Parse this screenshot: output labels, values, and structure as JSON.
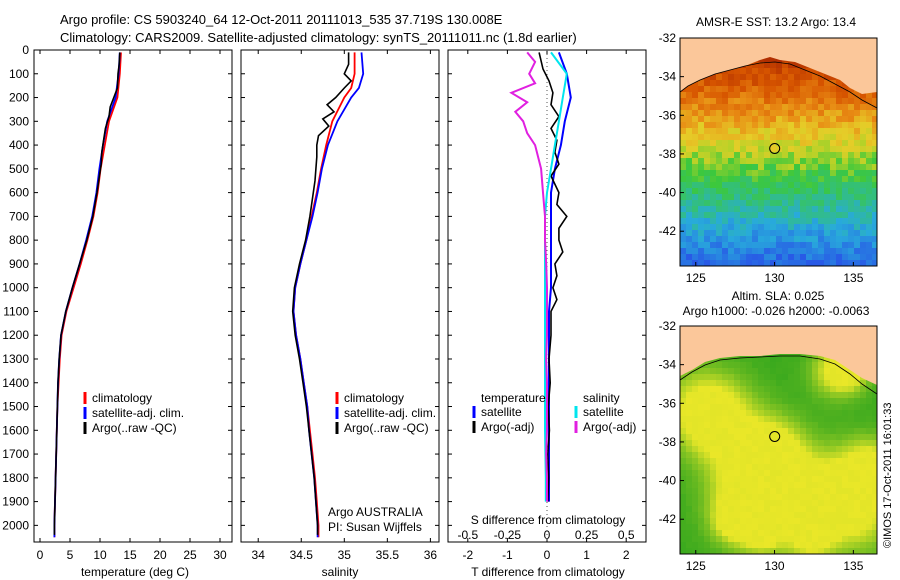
{
  "header": {
    "title_line1": "Argo profile: CS 5903240_64 12-Oct-2011 20111013_535 37.719S 130.008E",
    "title_line2": "Climatology: CARS2009. Satellite-adjusted climatology: synTS_20111011.nc (1.8d earlier)"
  },
  "colors": {
    "climatology": "#ff0000",
    "satellite": "#0000ff",
    "argo": "#000000",
    "salinity_satellite": "#00e5ee",
    "salinity_argo": "#e020e0",
    "land": "#fbc79a"
  },
  "depth_ticks": [
    "0",
    "100",
    "200",
    "300",
    "400",
    "500",
    "600",
    "700",
    "800",
    "900",
    "1000",
    "1100",
    "1200",
    "1300",
    "1400",
    "1500",
    "1600",
    "1700",
    "1800",
    "1900",
    "2000"
  ],
  "legend": {
    "climatology": "climatology",
    "satellite_adj": "satellite-adj. clim.",
    "argo_raw": "Argo(..raw -QC)",
    "temperature_head": "temperature",
    "salinity_head": "salinity",
    "satellite": "satellite",
    "argo_adj": "Argo(-adj)"
  },
  "credits": {
    "argo": "Argo AUSTRALIA",
    "pi": "PI: Susan Wijffels",
    "imos": "©IMOS 17-Oct-2011 16:01:33"
  },
  "chart_data": [
    {
      "type": "line",
      "title": "temperature profile",
      "xlabel": "temperature (deg C)",
      "ylabel": "depth",
      "xlim": [
        -1,
        32
      ],
      "ylim": [
        2070,
        0
      ],
      "xticks": [
        "0",
        "5",
        "10",
        "15",
        "20",
        "25",
        "30"
      ],
      "series": [
        {
          "name": "climatology",
          "depth": [
            10,
            100,
            200,
            300,
            400,
            500,
            600,
            700,
            800,
            900,
            1000,
            1100,
            1200,
            1300,
            1400,
            1500,
            1600,
            1700,
            1800,
            1900,
            2000,
            2050
          ],
          "values": [
            13.5,
            13.3,
            12.9,
            11.5,
            10.8,
            10.1,
            9.6,
            8.9,
            7.9,
            6.8,
            5.6,
            4.4,
            3.6,
            3.3,
            3.1,
            2.9,
            2.8,
            2.7,
            2.6,
            2.5,
            2.4,
            2.4
          ]
        },
        {
          "name": "satellite-adj. clim.",
          "depth": [
            10,
            100,
            200,
            300,
            400,
            500,
            600,
            700,
            800,
            900,
            1000,
            1100,
            1200,
            1300,
            1400,
            1500,
            1600,
            1700,
            1800,
            1900,
            2000,
            2050
          ],
          "values": [
            13.3,
            13.1,
            12.6,
            11.2,
            10.5,
            9.9,
            9.4,
            8.7,
            7.7,
            6.6,
            5.4,
            4.3,
            3.5,
            3.2,
            3.0,
            2.9,
            2.8,
            2.7,
            2.6,
            2.5,
            2.4,
            2.4
          ]
        },
        {
          "name": "Argo(..raw -QC)",
          "depth": [
            10,
            60,
            100,
            160,
            200,
            240,
            280,
            330,
            380,
            430,
            480,
            530,
            600,
            700,
            800,
            900,
            1000,
            1100,
            1200,
            1300,
            1400,
            1500,
            1600,
            1700,
            1800,
            1900,
            2000,
            2040
          ],
          "values": [
            13.3,
            13.2,
            13.0,
            12.9,
            12.3,
            11.7,
            11.5,
            10.9,
            10.6,
            10.3,
            10.2,
            9.9,
            9.5,
            8.8,
            7.8,
            6.6,
            5.4,
            4.3,
            3.5,
            3.2,
            3.0,
            2.9,
            2.8,
            2.7,
            2.6,
            2.5,
            2.4,
            2.4
          ]
        }
      ]
    },
    {
      "type": "line",
      "title": "salinity profile",
      "xlabel": "salinity",
      "ylabel": "depth",
      "xlim": [
        33.8,
        36.1
      ],
      "ylim": [
        2070,
        0
      ],
      "xticks": [
        "34",
        "34.5",
        "35",
        "35.5",
        "36"
      ],
      "series": [
        {
          "name": "climatology",
          "depth": [
            10,
            100,
            160,
            200,
            250,
            300,
            400,
            500,
            600,
            700,
            800,
            900,
            1000,
            1100,
            1200,
            1300,
            1400,
            1500,
            1600,
            1700,
            1800,
            1900,
            2000,
            2050
          ],
          "values": [
            35.12,
            35.12,
            35.08,
            35.0,
            34.93,
            34.86,
            34.79,
            34.73,
            34.68,
            34.62,
            34.56,
            34.49,
            34.43,
            34.41,
            34.44,
            34.49,
            34.53,
            34.57,
            34.6,
            34.63,
            34.66,
            34.68,
            34.7,
            34.7
          ]
        },
        {
          "name": "satellite-adj. clim.",
          "depth": [
            10,
            100,
            160,
            200,
            250,
            300,
            400,
            500,
            600,
            700,
            800,
            900,
            1000,
            1100,
            1200,
            1300,
            1400,
            1500,
            1600,
            1700,
            1800,
            1900,
            2000,
            2050
          ],
          "values": [
            35.2,
            35.22,
            35.17,
            35.08,
            35.0,
            34.92,
            34.81,
            34.74,
            34.69,
            34.63,
            34.56,
            34.49,
            34.43,
            34.41,
            34.44,
            34.49,
            34.53,
            34.57,
            34.59,
            34.62,
            34.65,
            34.67,
            34.69,
            34.69
          ]
        },
        {
          "name": "Argo(..raw -QC)",
          "depth": [
            10,
            60,
            100,
            130,
            160,
            200,
            230,
            260,
            290,
            320,
            360,
            400,
            450,
            500,
            550,
            600,
            700,
            800,
            900,
            1000,
            1100,
            1200,
            1300,
            1400,
            1500,
            1600,
            1700,
            1800,
            1900,
            2000,
            2040
          ],
          "values": [
            35.05,
            35.05,
            35.0,
            35.08,
            35.0,
            34.9,
            34.8,
            34.88,
            34.75,
            34.82,
            34.7,
            34.68,
            34.68,
            34.67,
            34.66,
            34.64,
            34.6,
            34.55,
            34.48,
            34.42,
            34.4,
            34.43,
            34.48,
            34.52,
            34.56,
            34.59,
            34.62,
            34.65,
            34.67,
            34.69,
            34.69
          ]
        }
      ]
    },
    {
      "type": "line",
      "title": "difference from climatology",
      "xlabel": "T difference from climatology",
      "xlabel_top": "S difference from climatology",
      "xlim": [
        -2.5,
        2.5
      ],
      "ylim": [
        2070,
        0
      ],
      "xticks": [
        "-2",
        "-1",
        "0",
        "1",
        "2"
      ],
      "xticks_salinity": [
        "-0.5",
        "-0.25",
        "0",
        "0.25",
        "0.5"
      ],
      "series": [
        {
          "name": "temperature satellite",
          "depth": [
            10,
            100,
            200,
            300,
            400,
            500,
            600,
            700,
            800,
            900,
            1000,
            1100,
            1200,
            1400,
            1600,
            1800,
            1900
          ],
          "values": [
            0.3,
            0.5,
            0.6,
            0.45,
            0.35,
            0.2,
            0.1,
            0.1,
            0.1,
            0.1,
            0.1,
            0.05,
            0.05,
            0.05,
            0.05,
            0.05,
            0.05
          ]
        },
        {
          "name": "temperature Argo(-adj)",
          "depth": [
            10,
            80,
            130,
            180,
            230,
            280,
            330,
            380,
            430,
            480,
            530,
            600,
            650,
            700,
            750,
            800,
            850,
            900,
            950,
            1000,
            1050,
            1100,
            1200,
            1300,
            1400,
            1500,
            1600,
            1700,
            1800,
            1900
          ],
          "values": [
            -0.2,
            -0.1,
            0.05,
            0.15,
            0.1,
            0.3,
            0.1,
            0.25,
            0.2,
            0.3,
            0.1,
            0.3,
            0.25,
            0.5,
            0.3,
            0.3,
            0.4,
            0.2,
            0.25,
            0.15,
            0.25,
            0.1,
            0.1,
            0.05,
            0.08,
            0.03,
            0.06,
            0.02,
            0.04,
            0.02
          ]
        },
        {
          "name": "salinity satellite",
          "depth": [
            10,
            100,
            200,
            300,
            400,
            500,
            600,
            700,
            800,
            900,
            1000,
            1100,
            1200,
            1400,
            1600,
            1800,
            1900
          ],
          "values": [
            0.1,
            0.5,
            0.4,
            0.3,
            0.2,
            0.1,
            0.0,
            -0.05,
            -0.05,
            -0.05,
            -0.05,
            -0.05,
            -0.05,
            -0.05,
            -0.05,
            -0.03,
            -0.03
          ]
        },
        {
          "name": "salinity Argo(-adj)",
          "depth": [
            10,
            50,
            100,
            140,
            180,
            220,
            260,
            300,
            350,
            400,
            500,
            600,
            700,
            800,
            900,
            1000,
            1100,
            1200,
            1300,
            1400,
            1500,
            1600,
            1700,
            1800,
            1900
          ],
          "values": [
            -0.5,
            -0.3,
            -0.45,
            -0.3,
            -0.9,
            -0.5,
            -0.8,
            -0.6,
            -0.5,
            -0.3,
            -0.15,
            -0.1,
            -0.05,
            -0.05,
            -0.02,
            0.0,
            0.0,
            0.0,
            -0.02,
            0.0,
            0.0,
            0.0,
            -0.02,
            0.0,
            0.0
          ]
        }
      ]
    },
    {
      "type": "heatmap",
      "title": "AMSR-E SST: 13.2 Argo: 13.4",
      "xlim": [
        124,
        136.5
      ],
      "ylim": [
        -43.8,
        -32
      ],
      "xticks": [
        "125",
        "130",
        "135"
      ],
      "yticks": [
        "-32",
        "-34",
        "-36",
        "-38",
        "-40",
        "-42"
      ],
      "argo_position": {
        "lon": 130.008,
        "lat": -37.719
      }
    },
    {
      "type": "heatmap",
      "title_line1": "Altim. SLA: 0.025",
      "title_line2": "Argo h1000: -0.026 h2000: -0.0063",
      "xlim": [
        124,
        136.5
      ],
      "ylim": [
        -43.8,
        -32
      ],
      "xticks": [
        "125",
        "130",
        "135"
      ],
      "yticks": [
        "-32",
        "-34",
        "-36",
        "-38",
        "-40",
        "-42"
      ],
      "argo_position": {
        "lon": 130.008,
        "lat": -37.719
      }
    }
  ]
}
